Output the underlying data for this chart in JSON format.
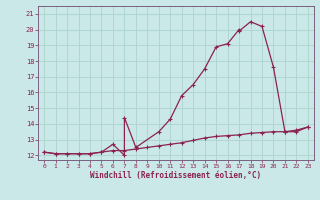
{
  "xlabel": "Windchill (Refroidissement éolien,°C)",
  "background_color": "#cbe8e8",
  "grid_color": "#aad4cc",
  "line_color": "#8b2252",
  "spine_color": "#7a6080",
  "xlim": [
    -0.5,
    23.5
  ],
  "ylim": [
    11.7,
    21.5
  ],
  "xticks": [
    0,
    1,
    2,
    3,
    4,
    5,
    6,
    7,
    8,
    9,
    10,
    11,
    12,
    13,
    14,
    15,
    16,
    17,
    18,
    19,
    20,
    21,
    22,
    23
  ],
  "yticks": [
    12,
    13,
    14,
    15,
    16,
    17,
    18,
    19,
    20,
    21
  ],
  "curve1_x": [
    0,
    1,
    2,
    3,
    4,
    5,
    6,
    7,
    7,
    8,
    10,
    11,
    12,
    13,
    14,
    15,
    16,
    17,
    17,
    18,
    19,
    20,
    21,
    22,
    23
  ],
  "curve1_y": [
    12.2,
    12.1,
    12.1,
    12.1,
    12.1,
    12.2,
    12.7,
    12.0,
    14.4,
    12.5,
    13.5,
    14.3,
    15.8,
    16.5,
    17.5,
    18.9,
    19.1,
    20.0,
    19.9,
    20.5,
    20.2,
    17.6,
    13.5,
    13.5,
    13.8
  ],
  "curve2_x": [
    0,
    1,
    2,
    3,
    4,
    5,
    6,
    7,
    8,
    9,
    10,
    11,
    12,
    13,
    14,
    15,
    16,
    17,
    18,
    19,
    20,
    21,
    22,
    23
  ],
  "curve2_y": [
    12.2,
    12.1,
    12.1,
    12.1,
    12.1,
    12.2,
    12.3,
    12.3,
    12.4,
    12.5,
    12.6,
    12.7,
    12.8,
    12.95,
    13.1,
    13.2,
    13.25,
    13.3,
    13.4,
    13.45,
    13.5,
    13.5,
    13.6,
    13.8
  ]
}
